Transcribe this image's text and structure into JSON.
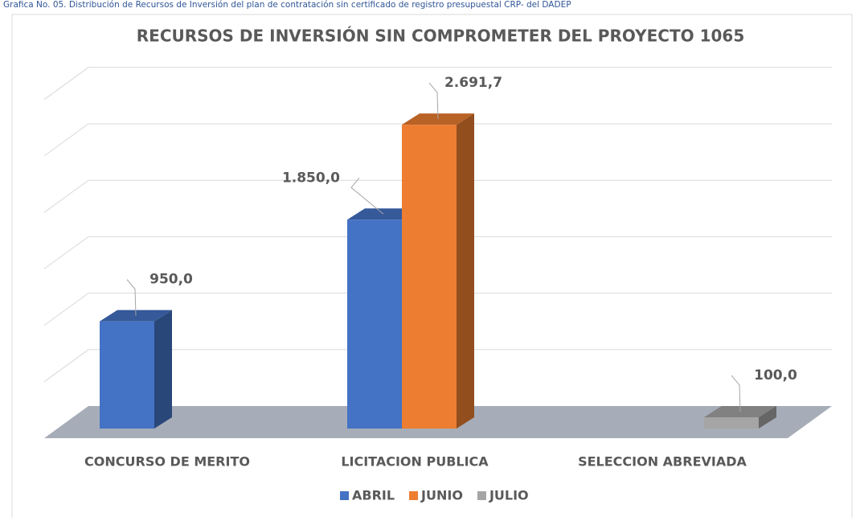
{
  "caption": "Grafica No. 05. Distribución de Recursos de Inversión del plan de contratación sin certificado de registro presupuestal CRP- del DADEP",
  "chart_data": {
    "type": "bar3d",
    "title": "RECURSOS DE INVERSIÓN SIN COMPROMETER DEL PROYECTO 1065",
    "categories": [
      "CONCURSO DE MERITO",
      "LICITACION PUBLICA",
      "SELECCION ABREVIADA"
    ],
    "series": [
      {
        "name": "ABRIL",
        "color": "#4472c4",
        "values": [
          950,
          1850,
          null
        ],
        "value_labels": [
          "950,0",
          "1.850,0",
          null
        ]
      },
      {
        "name": "JUNIO",
        "color": "#ed7d31",
        "values": [
          null,
          2691.7,
          null
        ],
        "value_labels": [
          null,
          "2.691,7",
          null
        ]
      },
      {
        "name": "JULIO",
        "color": "#a5a5a5",
        "values": [
          null,
          null,
          100
        ],
        "value_labels": [
          null,
          null,
          "100,0"
        ]
      }
    ],
    "ylim": [
      0,
      3000
    ],
    "yticks": [
      0,
      500,
      1000,
      1500,
      2000,
      2500,
      3000
    ],
    "grid": true,
    "legend": "bottom"
  }
}
